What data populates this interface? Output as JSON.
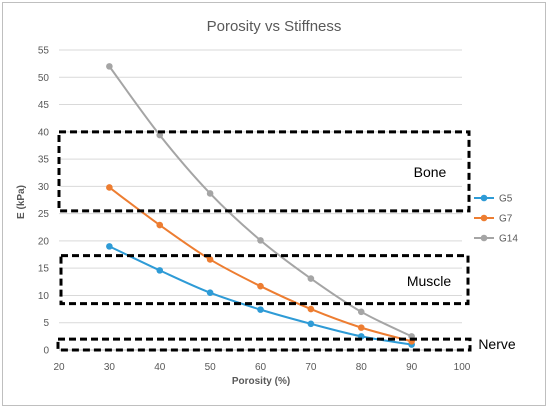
{
  "chart_data": {
    "type": "line",
    "title": "Porosity vs Stiffness",
    "xlabel": "Porosity (%)",
    "ylabel": "E (kPa)",
    "xlim": [
      20,
      100
    ],
    "ylim": [
      0,
      55
    ],
    "xticks": [
      20,
      30,
      40,
      50,
      60,
      70,
      80,
      90,
      100
    ],
    "yticks": [
      0,
      5,
      10,
      15,
      20,
      25,
      30,
      35,
      40,
      45,
      50,
      55
    ],
    "grid": "horizontal",
    "legend_position": "right",
    "series": [
      {
        "name": "G5",
        "color": "#2E9BD6",
        "x": [
          30,
          40,
          50,
          60,
          70,
          80,
          90
        ],
        "y": [
          19,
          14.6,
          10.5,
          7.4,
          4.8,
          2.5,
          1.0
        ]
      },
      {
        "name": "G7",
        "color": "#ED7D31",
        "x": [
          30,
          40,
          50,
          60,
          70,
          80,
          90
        ],
        "y": [
          29.8,
          22.9,
          16.6,
          11.7,
          7.5,
          4.1,
          1.6
        ]
      },
      {
        "name": "G14",
        "color": "#A5A5A5",
        "x": [
          30,
          40,
          50,
          60,
          70,
          80,
          90
        ],
        "y": [
          52,
          39.4,
          28.7,
          20.1,
          13.1,
          7.0,
          2.5
        ]
      }
    ],
    "annotations": [
      {
        "label": "Bone",
        "y_range": [
          25.5,
          40
        ]
      },
      {
        "label": "Muscle",
        "y_range": [
          8.5,
          17.3
        ]
      },
      {
        "label": "Nerve",
        "y_range": [
          0,
          2
        ]
      }
    ]
  }
}
